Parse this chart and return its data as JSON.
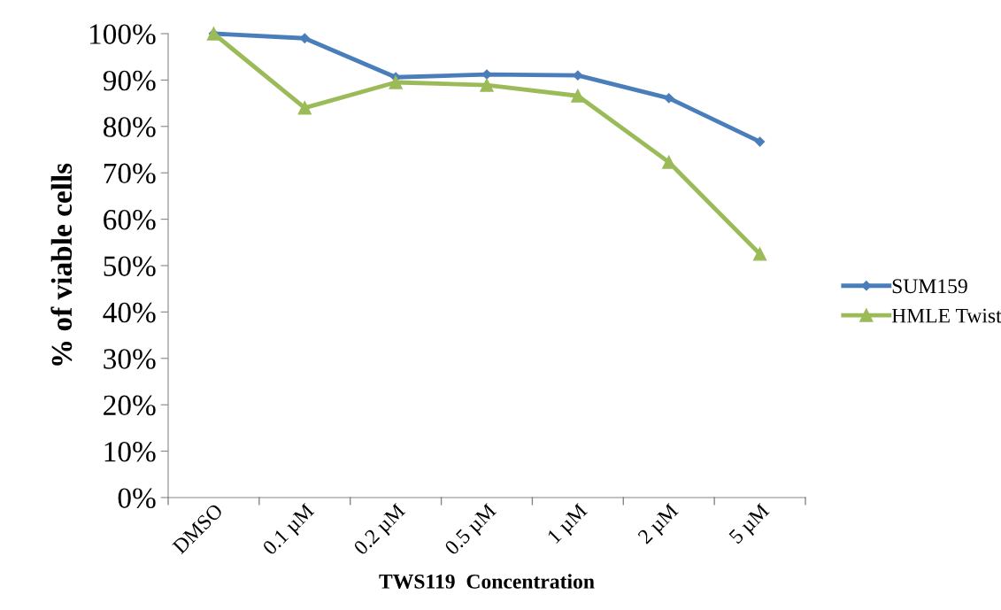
{
  "chart_data": {
    "type": "line",
    "xlabel": "TWS119  Concentration",
    "ylabel": "% of viable cells",
    "categories": [
      "DMSO",
      "0.1 µM",
      "0.2 µM",
      "0.5 µM",
      "1 µM",
      "2 µM",
      "5 µM"
    ],
    "series": [
      {
        "name": "SUM159",
        "color": "#4a7ebb",
        "marker": "diamond",
        "values": [
          100,
          99.0,
          90.6,
          91.2,
          91.0,
          86.1,
          76.7
        ]
      },
      {
        "name": "HMLE Twist",
        "color": "#9bbb59",
        "marker": "triangle",
        "values": [
          100,
          84.0,
          89.5,
          88.9,
          86.6,
          72.3,
          52.5
        ]
      }
    ],
    "ylim": [
      0,
      100
    ],
    "yticks": [
      {
        "value": 0,
        "label": "0%"
      },
      {
        "value": 10,
        "label": "10%"
      },
      {
        "value": 20,
        "label": "20%"
      },
      {
        "value": 30,
        "label": "30%"
      },
      {
        "value": 40,
        "label": "40%"
      },
      {
        "value": 50,
        "label": "50%"
      },
      {
        "value": 60,
        "label": "60%"
      },
      {
        "value": 70,
        "label": "70%"
      },
      {
        "value": 80,
        "label": "80%"
      },
      {
        "value": 90,
        "label": "90%"
      },
      {
        "value": 100,
        "label": "100%"
      }
    ],
    "grid": false,
    "legend": "right",
    "line_style": "solid"
  }
}
